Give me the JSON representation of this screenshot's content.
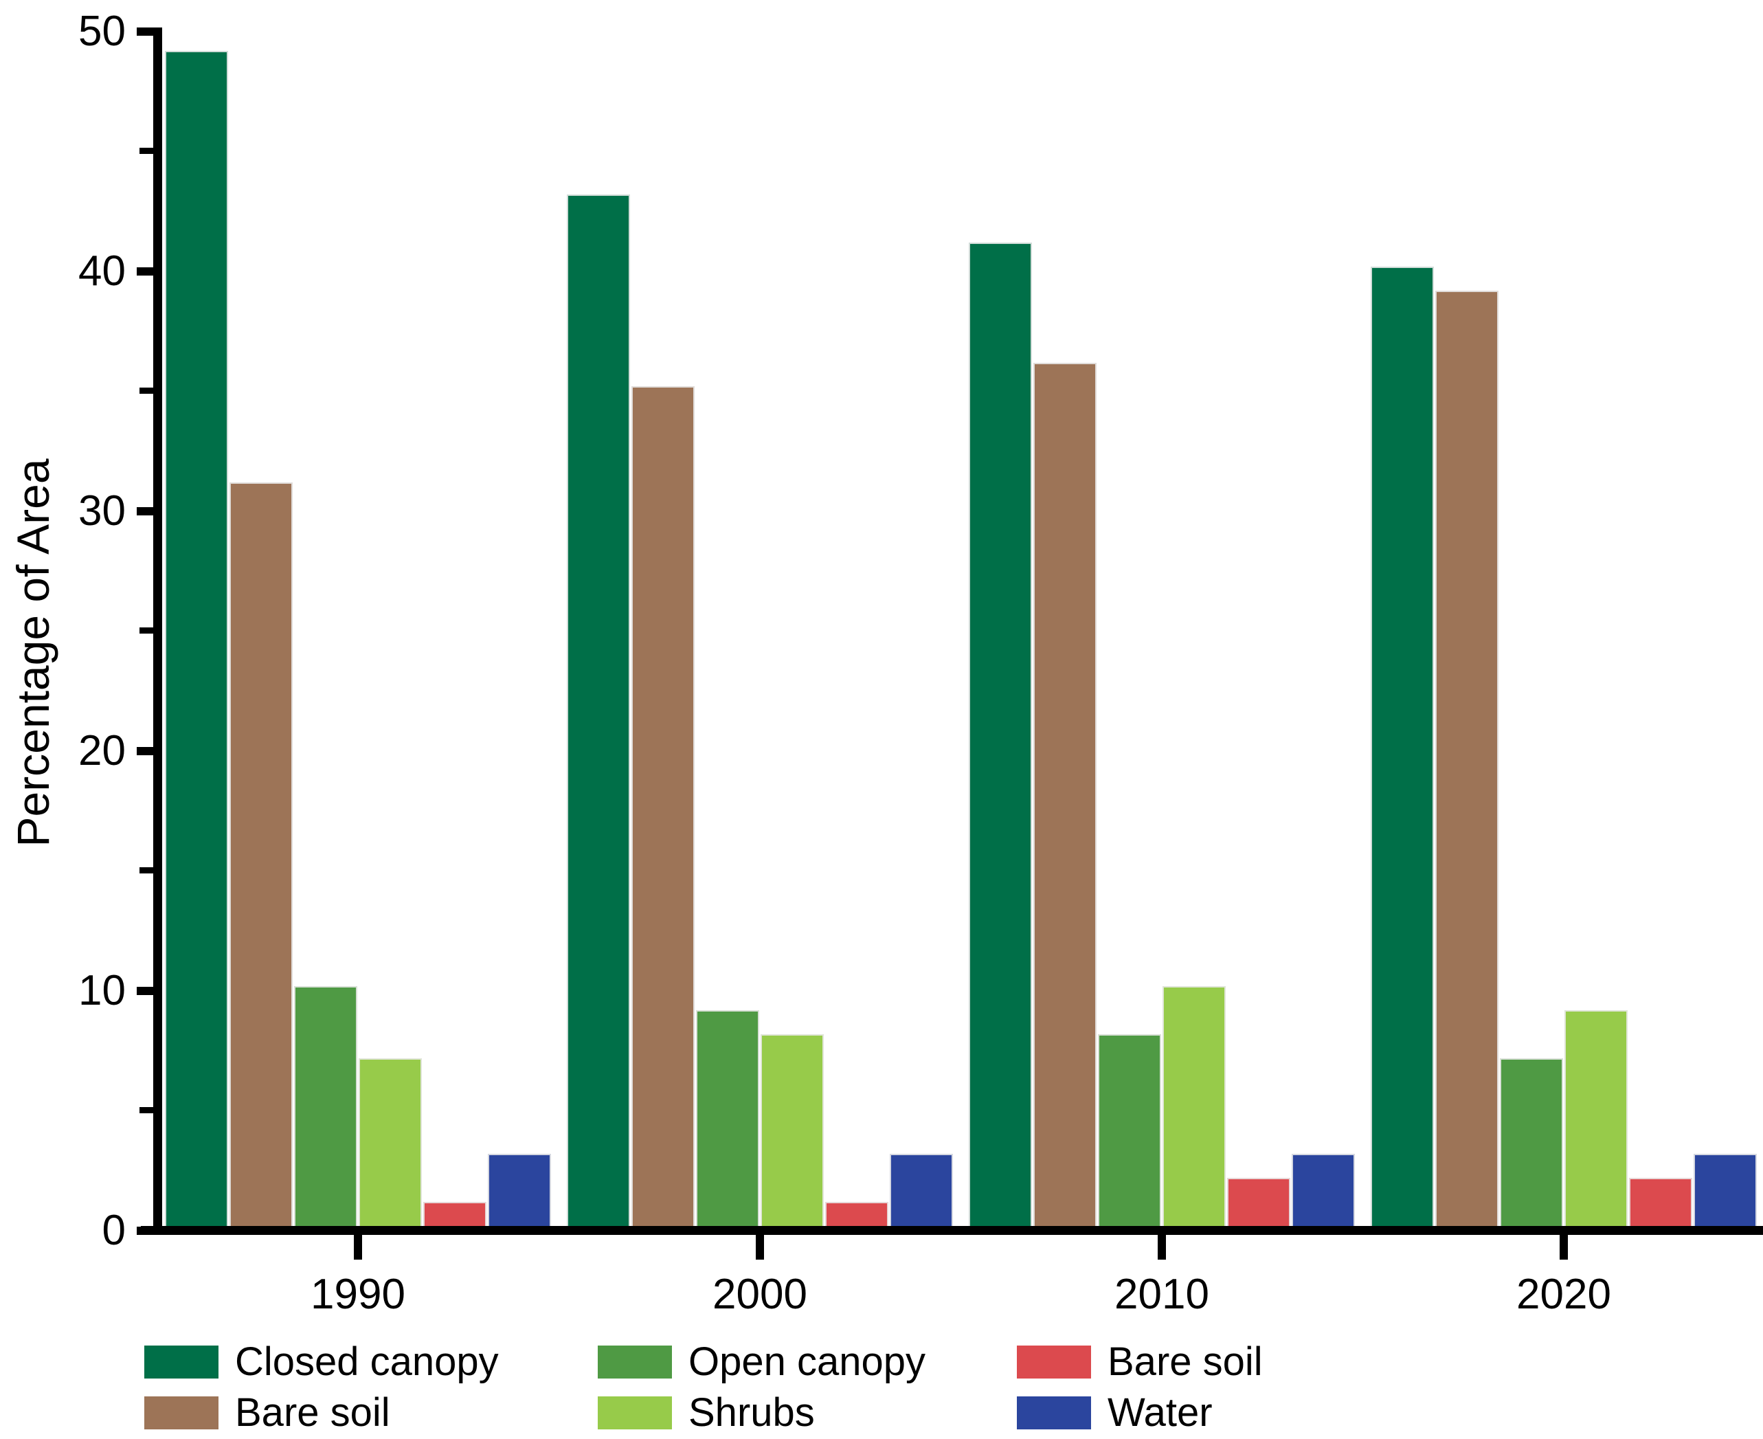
{
  "chart_data": {
    "type": "bar",
    "title": "",
    "xlabel": "",
    "ylabel": "Percentage of Area",
    "ylim": [
      0,
      50
    ],
    "y_major_ticks": [
      0,
      10,
      20,
      30,
      40,
      50
    ],
    "y_minor_ticks": [
      5,
      15,
      25,
      35,
      45
    ],
    "grid": false,
    "categories": [
      "1990",
      "2000",
      "2010",
      "2020"
    ],
    "series": [
      {
        "name": "Closed canopy",
        "color": "#006F48",
        "values": [
          49,
          43,
          41,
          40
        ]
      },
      {
        "name": "Bare soil",
        "color": "#9D7457",
        "values": [
          31,
          35,
          36,
          39
        ]
      },
      {
        "name": "Open canopy",
        "color": "#4F9A44",
        "values": [
          10,
          9,
          8,
          7
        ]
      },
      {
        "name": "Shrubs",
        "color": "#97CB4A",
        "values": [
          7,
          8,
          10,
          9
        ]
      },
      {
        "name": "Bare soil",
        "color": "#DC4A4E",
        "values": [
          1,
          1,
          2,
          2
        ]
      },
      {
        "name": "Water",
        "color": "#2B459E",
        "values": [
          3,
          3,
          3,
          3
        ]
      }
    ],
    "legend": {
      "position": "bottom",
      "columns": [
        [
          {
            "label": "Closed canopy",
            "color": "#006F48"
          },
          {
            "label": "Bare soil",
            "color": "#9D7457"
          }
        ],
        [
          {
            "label": "Open canopy",
            "color": "#4F9A44"
          },
          {
            "label": "Shrubs",
            "color": "#97CB4A"
          }
        ],
        [
          {
            "label": "Bare soil",
            "color": "#DC4A4E"
          },
          {
            "label": "Water",
            "color": "#2B459E"
          }
        ]
      ]
    }
  }
}
